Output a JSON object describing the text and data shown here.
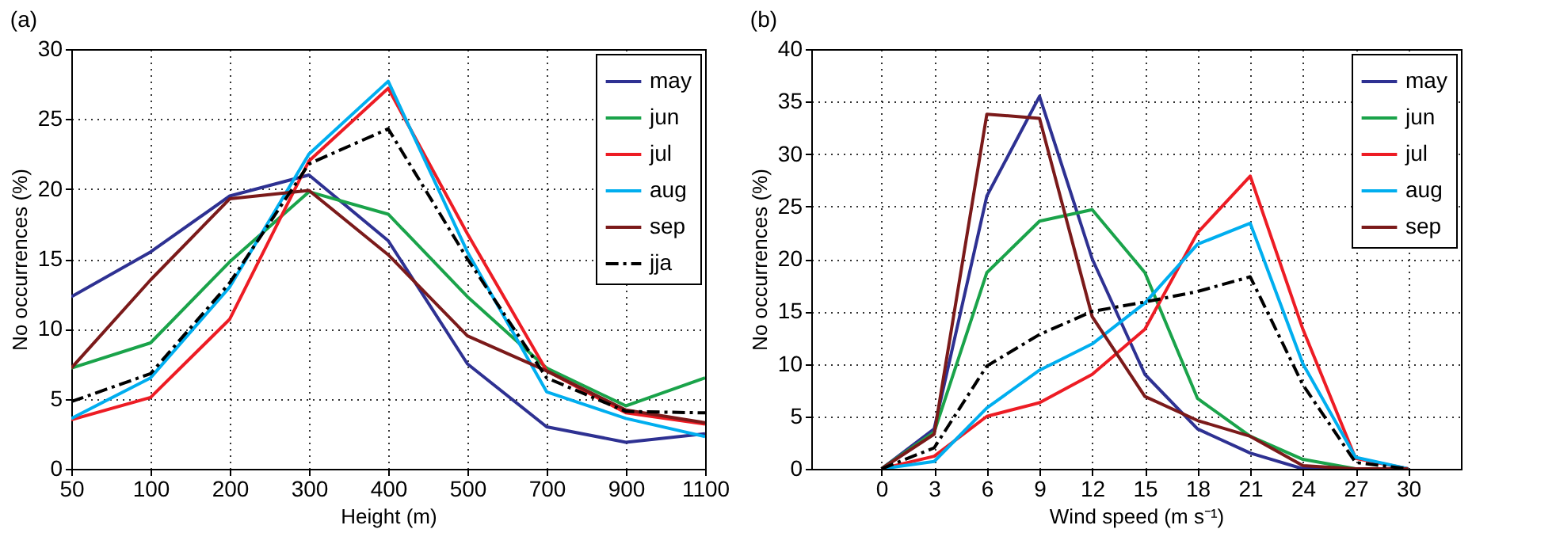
{
  "chart_data": [
    {
      "type": "line",
      "title": "(a)",
      "xlabel": "Height (m)",
      "ylabel": "No occurrences (%)",
      "categories": [
        "50",
        "100",
        "200",
        "300",
        "400",
        "500",
        "700",
        "900",
        "1100"
      ],
      "ylim": [
        0,
        30
      ],
      "yticks": [
        0,
        5,
        10,
        15,
        20,
        25,
        30
      ],
      "grid": true,
      "legend": "top right",
      "series": [
        {
          "name": "may",
          "color": "#2e3192",
          "values": [
            12.3,
            15.5,
            19.5,
            21,
            16.3,
            7.5,
            3,
            1.9,
            2.5
          ]
        },
        {
          "name": "jun",
          "color": "#1aa34a",
          "values": [
            7.2,
            9,
            14.8,
            19.8,
            18.2,
            12.3,
            7.2,
            4.5,
            6.5
          ]
        },
        {
          "name": "jul",
          "color": "#ed1c24",
          "values": [
            3.5,
            5.1,
            10.7,
            22,
            27.2,
            16.8,
            7,
            4,
            3.2
          ]
        },
        {
          "name": "aug",
          "color": "#00aeef",
          "values": [
            3.6,
            6.5,
            13,
            22.5,
            27.7,
            15.5,
            5.5,
            3.6,
            2.3
          ]
        },
        {
          "name": "sep",
          "color": "#7b1a1a",
          "values": [
            7.2,
            13.5,
            19.3,
            19.9,
            15.3,
            9.5,
            7,
            4.2,
            3.3
          ]
        },
        {
          "name": "jja",
          "color": "#000000",
          "line_style": "dashed",
          "values": [
            4.8,
            6.8,
            13.3,
            21.8,
            24.3,
            15,
            6.5,
            4.1,
            4
          ]
        }
      ]
    },
    {
      "type": "line",
      "title": "(b)",
      "xlabel": "Wind speed (m s⁻¹)",
      "ylabel": "No occurrences (%)",
      "x": [
        0,
        3,
        6,
        9,
        12,
        15,
        18,
        21,
        24,
        27,
        30
      ],
      "xlim": [
        -4,
        33
      ],
      "xticks": [
        0,
        3,
        6,
        9,
        12,
        15,
        18,
        21,
        24,
        27,
        30
      ],
      "ylim": [
        0,
        40
      ],
      "yticks": [
        0,
        5,
        10,
        15,
        20,
        25,
        30,
        35,
        40
      ],
      "grid": true,
      "legend": "top right",
      "series": [
        {
          "name": "may",
          "color": "#2e3192",
          "values": [
            0,
            3.8,
            26,
            35.5,
            20,
            9,
            3.8,
            1.5,
            0,
            0,
            0
          ]
        },
        {
          "name": "jun",
          "color": "#1aa34a",
          "values": [
            0,
            3.5,
            18.7,
            23.6,
            24.7,
            18.7,
            6.7,
            3.1,
            0.9,
            0,
            0
          ]
        },
        {
          "name": "jul",
          "color": "#ed1c24",
          "values": [
            0,
            1.2,
            5,
            6.3,
            9,
            13.3,
            22.5,
            27.9,
            13.3,
            1,
            0
          ]
        },
        {
          "name": "aug",
          "color": "#00aeef",
          "values": [
            0,
            0.7,
            5.8,
            9.4,
            11.9,
            15.8,
            21.4,
            23.4,
            10,
            1.1,
            0
          ]
        },
        {
          "name": "sep",
          "color": "#7b1a1a",
          "values": [
            0,
            3.3,
            33.8,
            33.4,
            14.5,
            6.9,
            4.6,
            3.1,
            0.3,
            0,
            0
          ]
        },
        {
          "color": "#000000",
          "line_style": "dashed",
          "values": [
            0,
            2,
            9.8,
            12.8,
            15,
            15.9,
            16.9,
            18.3,
            8,
            0.6,
            0
          ]
        }
      ]
    }
  ]
}
